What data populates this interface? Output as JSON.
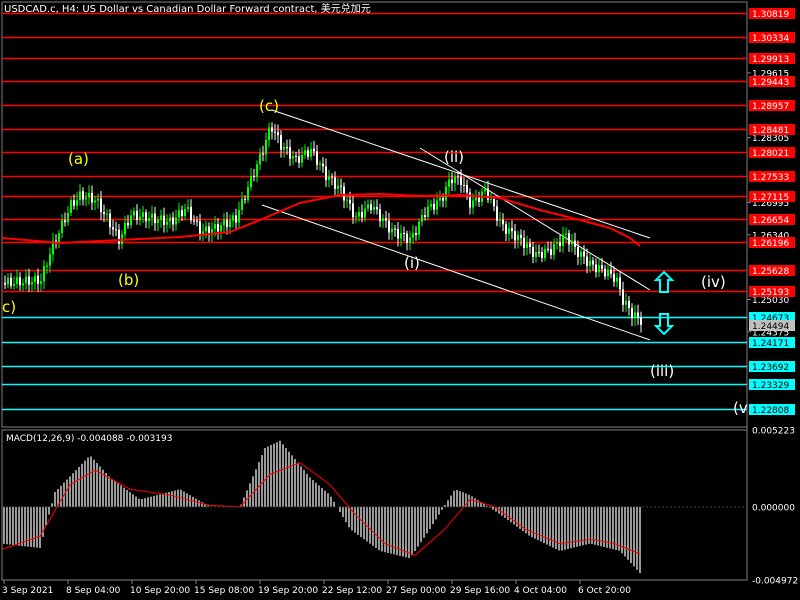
{
  "header": {
    "title": "USDCAD.c, H4:  US Dollar vs Canadian Dollar Forward contract, 美元兑加元"
  },
  "colors": {
    "background": "#000000",
    "bull": "#00ff00",
    "bear": "#ffffff",
    "resistance": "#ff0000",
    "support": "#00ffff",
    "wave_label": "#ffff00",
    "channel": "#ffffff",
    "macd_hist": "#c0c0c0",
    "macd_signal": "#ff0000"
  },
  "price_axis": {
    "ticks": [
      "1.29615",
      "1.28305",
      "1.26995",
      "1.26340",
      "1.25030",
      "1.24375"
    ],
    "current_price": "1.24494",
    "range": [
      1.2245,
      1.3105
    ]
  },
  "resistance_levels": [
    "1.30819",
    "1.30334",
    "1.29913",
    "1.29443",
    "1.28957",
    "1.28481",
    "1.28021",
    "1.27533",
    "1.27115",
    "1.26654",
    "1.26196",
    "1.25628",
    "1.25193"
  ],
  "support_levels": [
    "1.24673",
    "1.24171",
    "1.23692",
    "1.23329",
    "1.22808"
  ],
  "wave_labels": {
    "a": "(a)",
    "b": "(b)",
    "c_left": "c)",
    "c_top": "(c)",
    "i": "(i)",
    "ii": "(ii)",
    "iii": "(iii)",
    "iv": "(iv)",
    "v": "(v"
  },
  "arrows": {
    "up": "up-arrow-icon",
    "down": "down-arrow-icon"
  },
  "macd": {
    "label": "MACD(12,26,9) -0.004088 -0.003193",
    "ticks": [
      "0.005223",
      "0.000000",
      "-0.004972"
    ],
    "range": [
      -0.004972,
      0.005223
    ]
  },
  "time_axis": {
    "labels": [
      "3 Sep 2021",
      "8 Sep 04:00",
      "10 Sep 20:00",
      "15 Sep 08:00",
      "19 Sep 20:00",
      "22 Sep 12:00",
      "27 Sep 00:00",
      "29 Sep 16:00",
      "4 Oct 04:00",
      "6 Oct 20:00"
    ]
  }
}
